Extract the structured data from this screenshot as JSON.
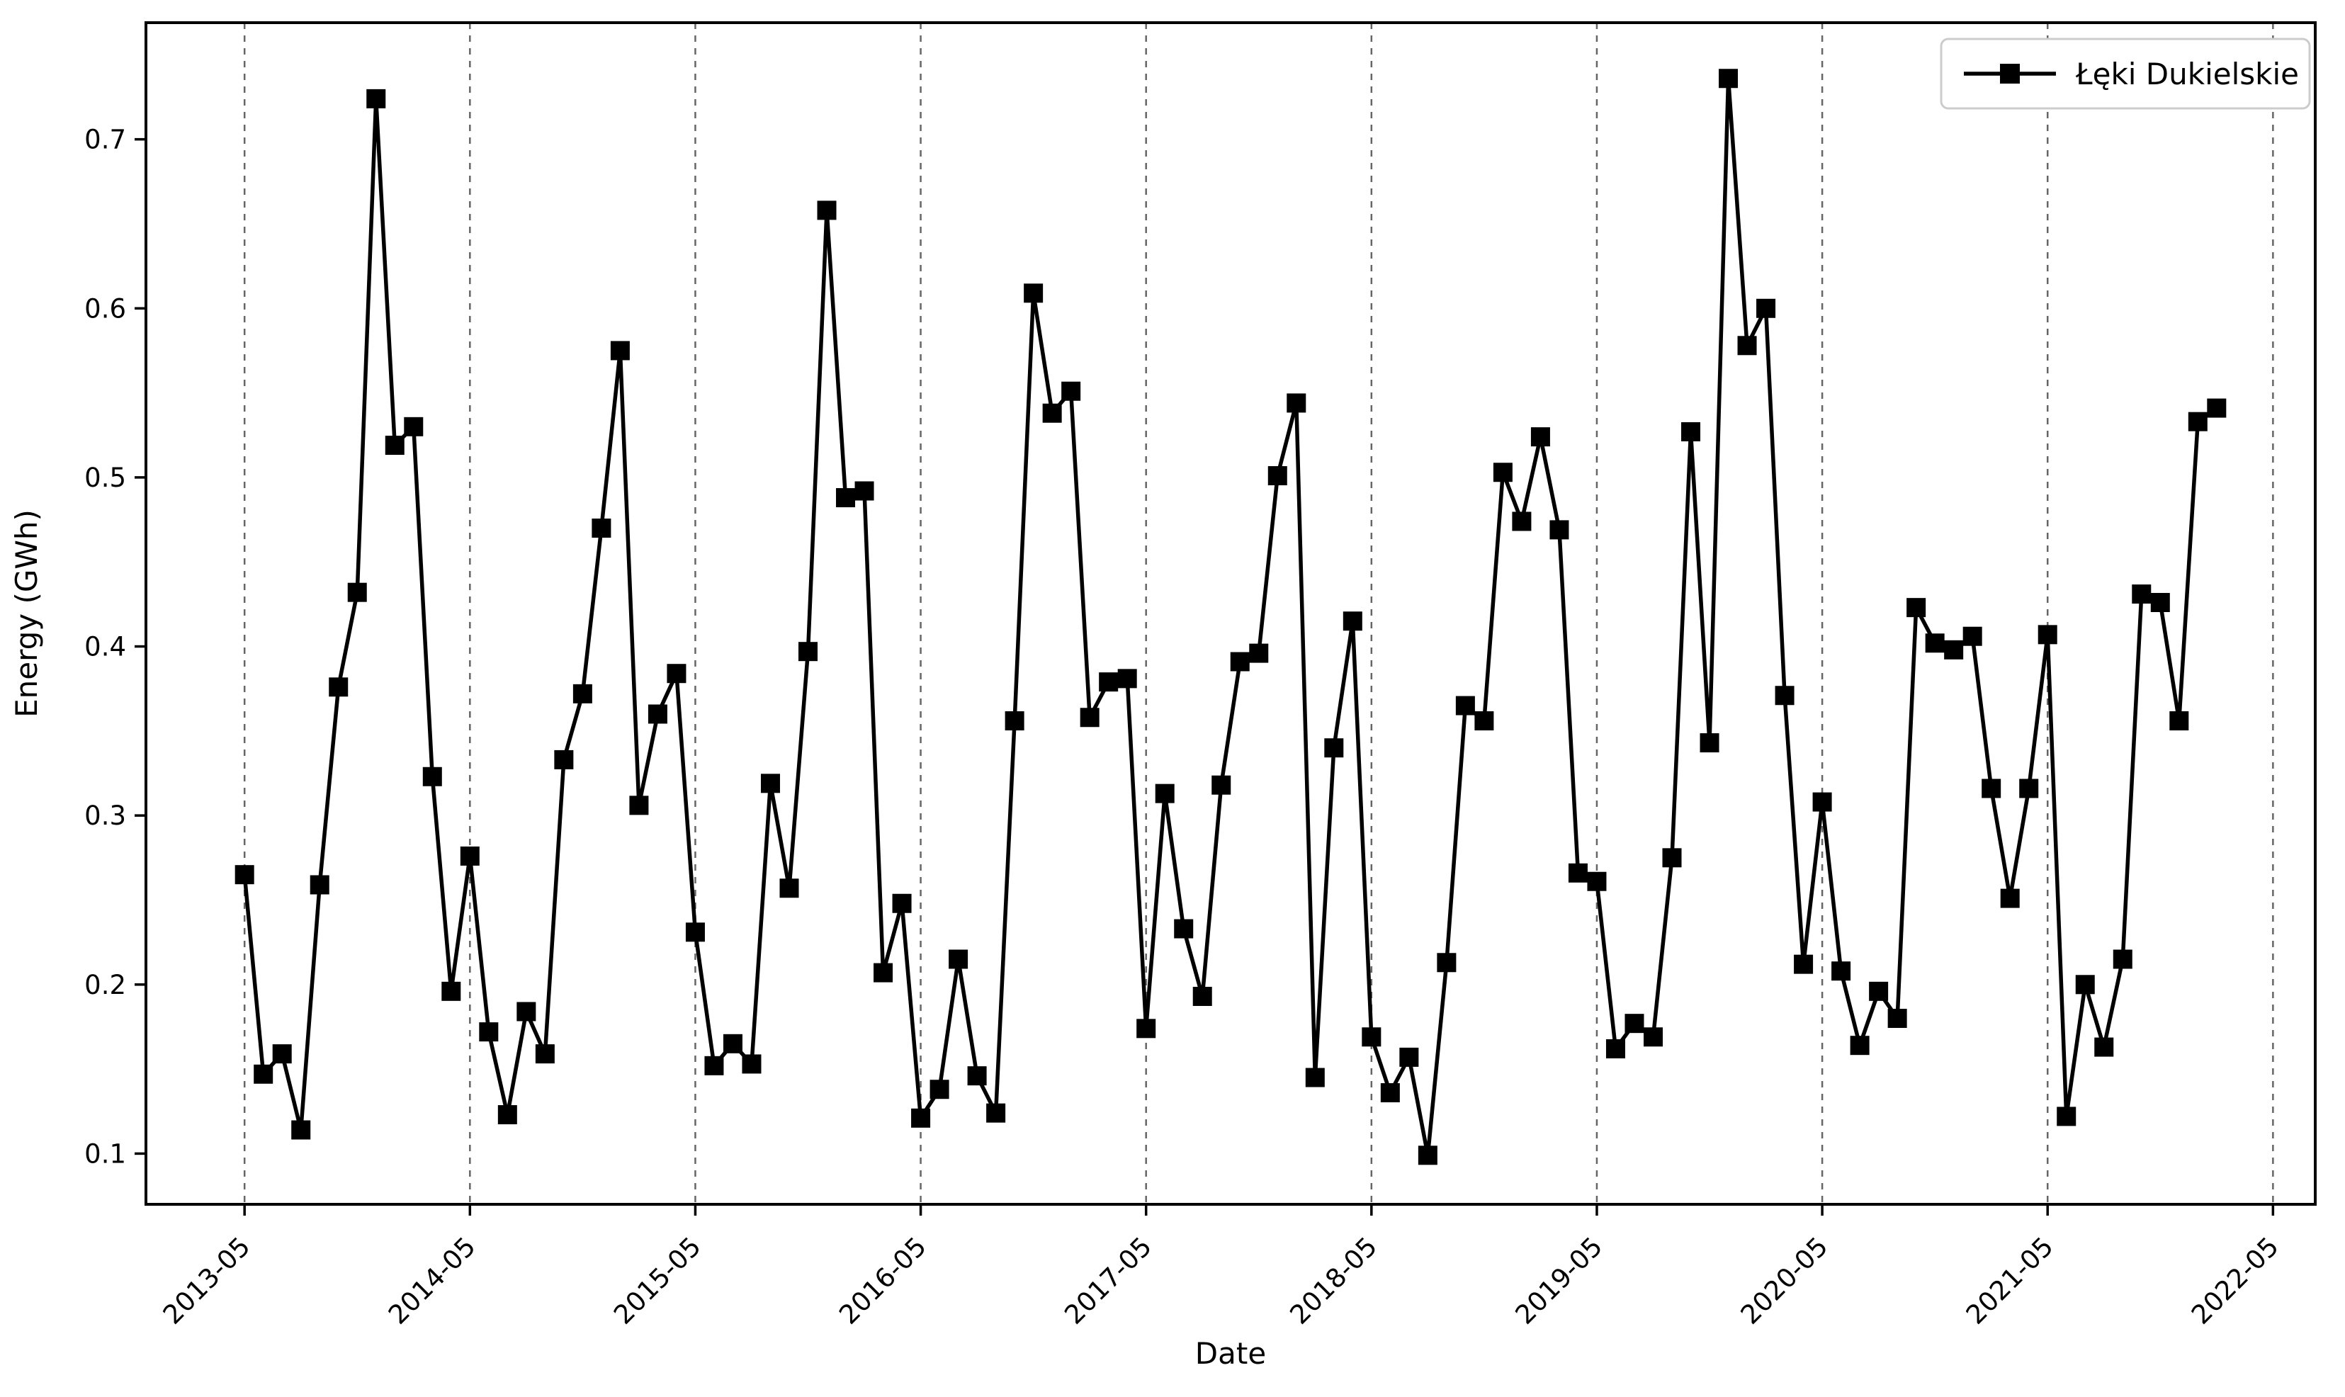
{
  "chart_data": {
    "type": "line",
    "title": "",
    "xlabel": "Date",
    "ylabel": "Energy (GWh)",
    "grid": {
      "x": true,
      "y": false,
      "style": "dashed",
      "color": "#666666"
    },
    "legend": {
      "position": "upper-right",
      "entries": [
        "Łęki Dukielskie"
      ]
    },
    "x_tick_labels": [
      "2013-05",
      "2014-05",
      "2015-05",
      "2016-05",
      "2017-05",
      "2018-05",
      "2019-05",
      "2020-05",
      "2021-05",
      "2022-05"
    ],
    "x_tick_month_offsets": [
      0,
      12,
      24,
      36,
      48,
      60,
      72,
      84,
      96,
      108
    ],
    "y_ticks": [
      0.1,
      0.2,
      0.3,
      0.4,
      0.5,
      0.6,
      0.7
    ],
    "y_tick_labels": [
      "0.1",
      "0.2",
      "0.3",
      "0.4",
      "0.5",
      "0.6",
      "0.7"
    ],
    "ylim": [
      0.07,
      0.769
    ],
    "xlim_months": [
      -5.25,
      110.25
    ],
    "series": [
      {
        "name": "Łęki Dukielskie",
        "color": "#000000",
        "marker": "square",
        "x": [
          "2013-05",
          "2013-06",
          "2013-07",
          "2013-08",
          "2013-09",
          "2013-10",
          "2013-11",
          "2013-12",
          "2014-01",
          "2014-02",
          "2014-03",
          "2014-04",
          "2014-05",
          "2014-06",
          "2014-07",
          "2014-08",
          "2014-09",
          "2014-10",
          "2014-11",
          "2014-12",
          "2015-01",
          "2015-02",
          "2015-03",
          "2015-04",
          "2015-05",
          "2015-06",
          "2015-07",
          "2015-08",
          "2015-09",
          "2015-10",
          "2015-11",
          "2015-12",
          "2016-01",
          "2016-02",
          "2016-03",
          "2016-04",
          "2016-05",
          "2016-06",
          "2016-07",
          "2016-08",
          "2016-09",
          "2016-10",
          "2016-11",
          "2016-12",
          "2017-01",
          "2017-02",
          "2017-03",
          "2017-04",
          "2017-05",
          "2017-06",
          "2017-07",
          "2017-08",
          "2017-09",
          "2017-10",
          "2017-11",
          "2017-12",
          "2018-01",
          "2018-02",
          "2018-03",
          "2018-04",
          "2018-05",
          "2018-06",
          "2018-07",
          "2018-08",
          "2018-09",
          "2018-10",
          "2018-11",
          "2018-12",
          "2019-01",
          "2019-02",
          "2019-03",
          "2019-04",
          "2019-05",
          "2019-06",
          "2019-07",
          "2019-08",
          "2019-09",
          "2019-10",
          "2019-11",
          "2019-12",
          "2020-01",
          "2020-02",
          "2020-03",
          "2020-04",
          "2020-05",
          "2020-06",
          "2020-07",
          "2020-08",
          "2020-09",
          "2020-10",
          "2020-11",
          "2020-12",
          "2021-01",
          "2021-02",
          "2021-03",
          "2021-04",
          "2021-05",
          "2021-06",
          "2021-07",
          "2021-08",
          "2021-09",
          "2021-10",
          "2021-11",
          "2021-12",
          "2022-01",
          "2022-02"
        ],
        "values": [
          0.265,
          0.147,
          0.159,
          0.114,
          0.259,
          0.376,
          0.432,
          0.724,
          0.519,
          0.53,
          0.323,
          0.196,
          0.276,
          0.172,
          0.123,
          0.184,
          0.159,
          0.333,
          0.372,
          0.47,
          0.575,
          0.306,
          0.36,
          0.384,
          0.231,
          0.152,
          0.165,
          0.153,
          0.319,
          0.257,
          0.397,
          0.658,
          0.488,
          0.492,
          0.207,
          0.248,
          0.121,
          0.138,
          0.215,
          0.146,
          0.124,
          0.356,
          0.609,
          0.538,
          0.551,
          0.358,
          0.379,
          0.381,
          0.174,
          0.313,
          0.233,
          0.193,
          0.318,
          0.391,
          0.396,
          0.501,
          0.544,
          0.145,
          0.34,
          0.415,
          0.169,
          0.136,
          0.157,
          0.099,
          0.213,
          0.365,
          0.356,
          0.503,
          0.474,
          0.524,
          0.469,
          0.266,
          0.261,
          0.162,
          0.177,
          0.169,
          0.275,
          0.527,
          0.343,
          0.736,
          0.578,
          0.6,
          0.371,
          0.212,
          0.308,
          0.208,
          0.164,
          0.196,
          0.18,
          0.423,
          0.402,
          0.398,
          0.406,
          0.316,
          0.251,
          0.316,
          0.407,
          0.122,
          0.2,
          0.163,
          0.215,
          0.431,
          0.426,
          0.356,
          0.533,
          0.541
        ]
      }
    ],
    "style": {
      "background": "#ffffff",
      "spine_color": "#000000",
      "line_width": 5.5,
      "marker_size": 27,
      "tick_font_size": 37,
      "label_font_size": 42,
      "legend_font_size": 42,
      "legend_border_color": "#cccccc"
    }
  }
}
